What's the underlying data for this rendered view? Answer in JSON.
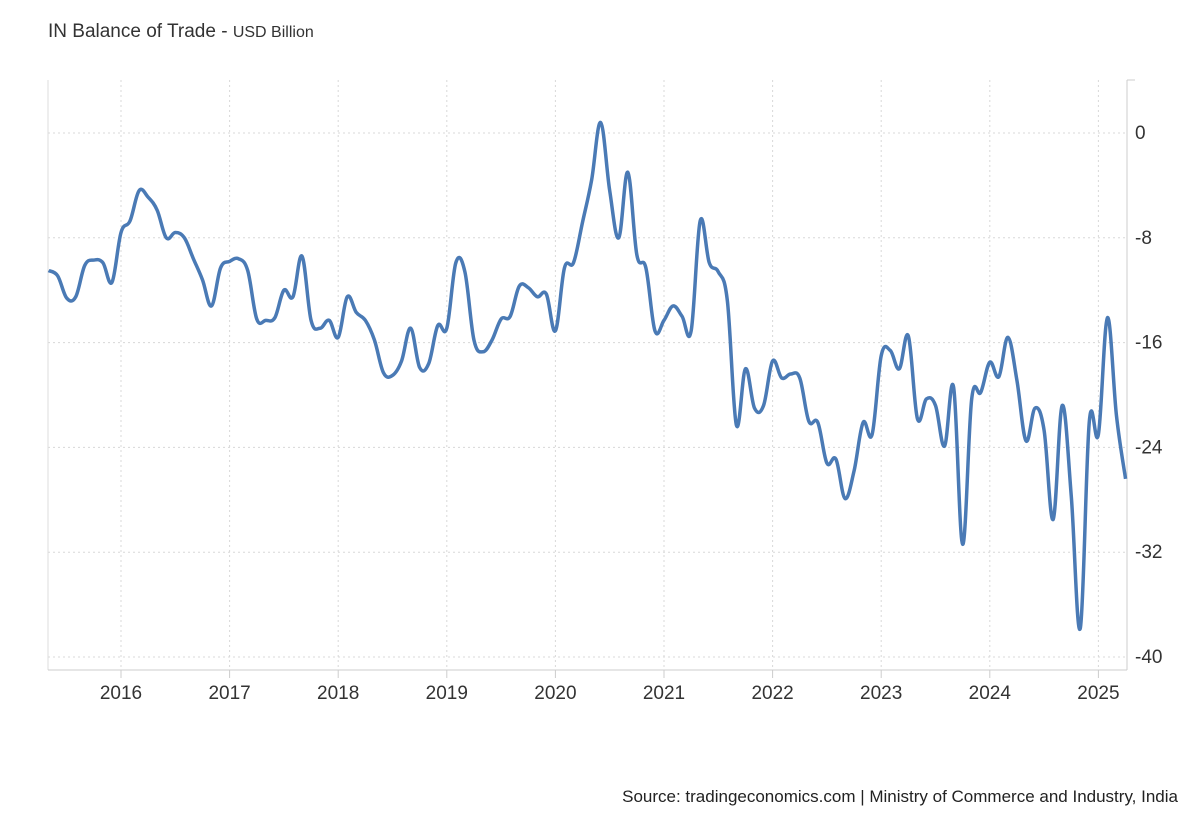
{
  "chart_data": {
    "type": "line",
    "title": "IN Balance of Trade",
    "unit": "USD Billion",
    "source": "Source: tradingeconomics.com | Ministry of Commerce and Industry, India",
    "color": "#4a7ab5",
    "grid": true,
    "y_axis_side": "right",
    "ylim": [
      -41,
      4
    ],
    "y_ticks": [
      0,
      -8,
      -16,
      -24,
      -32,
      -40
    ],
    "x_ticks": [
      "2016",
      "2017",
      "2018",
      "2019",
      "2020",
      "2021",
      "2022",
      "2023",
      "2024",
      "2025"
    ],
    "x_start": "2015-05",
    "x_end": "2025-04",
    "frequency": "monthly",
    "values": [
      -10.5,
      -10.9,
      -12.6,
      -12.5,
      -10.1,
      -9.7,
      -9.9,
      -11.4,
      -7.6,
      -6.7,
      -4.4,
      -4.9,
      -5.9,
      -8.0,
      -7.6,
      -8.0,
      -9.6,
      -11.2,
      -13.2,
      -10.3,
      -9.8,
      -9.6,
      -10.5,
      -14.2,
      -14.3,
      -14.1,
      -12.0,
      -12.5,
      -9.4,
      -14.3,
      -14.9,
      -14.3,
      -15.6,
      -12.5,
      -13.7,
      -14.3,
      -15.8,
      -18.3,
      -18.5,
      -17.4,
      -14.9,
      -17.9,
      -17.6,
      -14.7,
      -14.9,
      -9.9,
      -10.6,
      -15.8,
      -16.7,
      -15.8,
      -14.2,
      -14.0,
      -11.7,
      -11.8,
      -12.5,
      -12.3,
      -15.1,
      -10.3,
      -9.9,
      -6.8,
      -3.6,
      0.8,
      -4.4,
      -8.0,
      -3.0,
      -9.3,
      -10.3,
      -15.1,
      -14.3,
      -13.2,
      -14.0,
      -15.1,
      -6.7,
      -9.9,
      -10.6,
      -12.8,
      -22.3,
      -18.0,
      -21.0,
      -20.8,
      -17.4,
      -18.7,
      -18.4,
      -18.7,
      -22.0,
      -22.1,
      -25.2,
      -24.9,
      -27.9,
      -25.8,
      -22.1,
      -23.0,
      -17.0,
      -16.6,
      -18.0,
      -15.5,
      -21.8,
      -20.3,
      -20.8,
      -23.9,
      -19.4,
      -31.4,
      -20.3,
      -19.8,
      -17.5,
      -18.6,
      -15.6,
      -18.9,
      -23.5,
      -21.0,
      -22.7,
      -29.5,
      -20.8,
      -27.7,
      -37.8,
      -22.0,
      -23.0,
      -14.1,
      -21.6,
      -26.4
    ]
  }
}
